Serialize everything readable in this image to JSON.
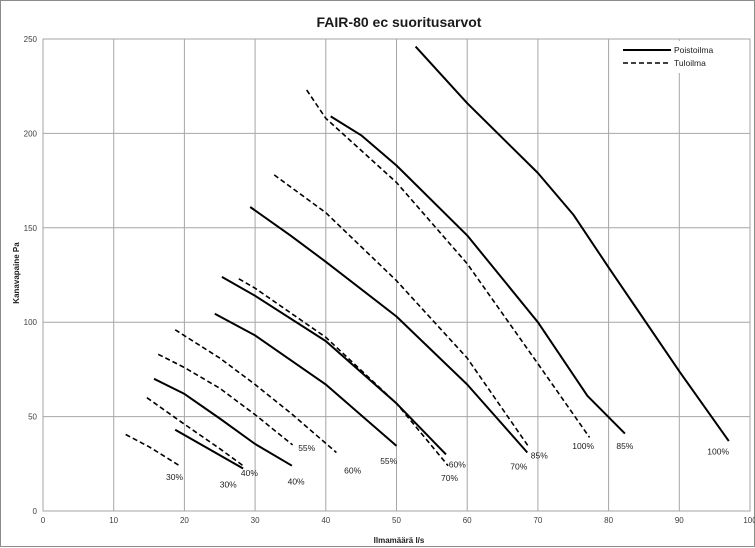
{
  "chart_data": {
    "type": "line",
    "title": "FAIR-80 ec suoritusarvot",
    "xlabel": "Ilmamäärä l/s",
    "ylabel": "Kanavapaine Pa",
    "xlim": [
      0,
      100
    ],
    "ylim": [
      0,
      250
    ],
    "x_ticks": [
      "0",
      "10",
      "20",
      "30",
      "40",
      "50",
      "60",
      "70",
      "80",
      "90",
      "100"
    ],
    "y_ticks": [
      "0",
      "50",
      "100",
      "150",
      "200",
      "250"
    ],
    "grid": true,
    "legend_position": "top-right",
    "legend": [
      {
        "name": "Poistoilma",
        "style": "solid"
      },
      {
        "name": "Tuloilma",
        "style": "dashed"
      }
    ],
    "series": [
      {
        "group": "Poistoilma",
        "label": "30%",
        "points": [
          [
            18.7,
            43
          ],
          [
            28.3,
            22.5
          ]
        ]
      },
      {
        "group": "Poistoilma",
        "label": "40%",
        "points": [
          [
            15.7,
            70
          ],
          [
            20,
            62
          ],
          [
            25,
            49
          ],
          [
            30,
            35.5
          ],
          [
            35.2,
            24
          ]
        ]
      },
      {
        "group": "Poistoilma",
        "label": "55%",
        "points": [
          [
            24.3,
            104.5
          ],
          [
            30,
            93
          ],
          [
            40,
            67
          ],
          [
            50,
            34.5
          ]
        ]
      },
      {
        "group": "Poistoilma",
        "label": "60%",
        "points": [
          [
            25.3,
            124
          ],
          [
            30,
            114
          ],
          [
            40,
            90
          ],
          [
            50,
            57
          ],
          [
            57,
            30
          ]
        ]
      },
      {
        "group": "Poistoilma",
        "label": "70%",
        "points": [
          [
            29.3,
            161
          ],
          [
            35,
            146
          ],
          [
            40,
            132
          ],
          [
            50,
            103
          ],
          [
            60,
            67
          ],
          [
            68.5,
            31
          ]
        ]
      },
      {
        "group": "Poistoilma",
        "label": "85%",
        "points": [
          [
            40.7,
            209
          ],
          [
            45,
            199
          ],
          [
            50,
            183
          ],
          [
            60,
            146
          ],
          [
            70,
            100
          ],
          [
            77,
            61
          ],
          [
            82.3,
            41
          ]
        ]
      },
      {
        "group": "Poistoilma",
        "label": "100%",
        "points": [
          [
            52.7,
            246
          ],
          [
            60,
            216
          ],
          [
            70,
            179
          ],
          [
            75,
            157
          ],
          [
            80,
            129
          ],
          [
            90,
            74
          ],
          [
            97,
            37
          ]
        ]
      },
      {
        "group": "Tuloilma",
        "label": "30%",
        "points": [
          [
            11.7,
            40.5
          ],
          [
            15,
            34
          ],
          [
            19.3,
            24
          ]
        ]
      },
      {
        "group": "Tuloilma",
        "label": "40%",
        "points": [
          [
            14.7,
            60
          ],
          [
            20,
            46
          ],
          [
            25,
            33
          ],
          [
            28.3,
            24
          ]
        ]
      },
      {
        "group": "Tuloilma",
        "label": "55%",
        "points": [
          [
            16.3,
            83
          ],
          [
            20,
            76
          ],
          [
            25,
            65
          ],
          [
            30,
            51
          ],
          [
            35.3,
            35
          ]
        ]
      },
      {
        "group": "Tuloilma",
        "label": "60%",
        "points": [
          [
            18.7,
            96
          ],
          [
            25,
            81
          ],
          [
            30,
            67
          ],
          [
            35,
            52
          ],
          [
            41.5,
            31
          ]
        ]
      },
      {
        "group": "Tuloilma",
        "label": "70%",
        "points": [
          [
            27.7,
            123
          ],
          [
            30,
            118
          ],
          [
            40,
            92
          ],
          [
            50,
            57
          ],
          [
            57.3,
            24
          ]
        ]
      },
      {
        "group": "Tuloilma",
        "label": "85%",
        "points": [
          [
            32.7,
            178
          ],
          [
            40,
            158
          ],
          [
            50,
            122
          ],
          [
            60,
            81
          ],
          [
            68.7,
            34
          ]
        ]
      },
      {
        "group": "Tuloilma",
        "label": "100%",
        "points": [
          [
            37.3,
            223
          ],
          [
            40,
            208
          ],
          [
            50,
            174
          ],
          [
            60,
            131
          ],
          [
            70,
            78
          ],
          [
            77.3,
            39
          ]
        ]
      }
    ],
    "annotations": [
      {
        "text": "30%",
        "x": 18.6,
        "y": 18
      },
      {
        "text": "30%",
        "x": 26.2,
        "y": 14
      },
      {
        "text": "40%",
        "x": 29.2,
        "y": 20
      },
      {
        "text": "40%",
        "x": 35.8,
        "y": 15.5
      },
      {
        "text": "55%",
        "x": 37.3,
        "y": 33.5
      },
      {
        "text": "60%",
        "x": 43.8,
        "y": 21.5
      },
      {
        "text": "55%",
        "x": 48.9,
        "y": 26.5
      },
      {
        "text": "60%",
        "x": 58.6,
        "y": 24.5
      },
      {
        "text": "70%",
        "x": 57.5,
        "y": 17.5
      },
      {
        "text": "70%",
        "x": 67.3,
        "y": 23.5
      },
      {
        "text": "85%",
        "x": 70.2,
        "y": 29.5
      },
      {
        "text": "100%",
        "x": 76.4,
        "y": 34.5
      },
      {
        "text": "85%",
        "x": 82.3,
        "y": 34.5
      },
      {
        "text": "100%",
        "x": 95.5,
        "y": 31.5
      }
    ]
  }
}
